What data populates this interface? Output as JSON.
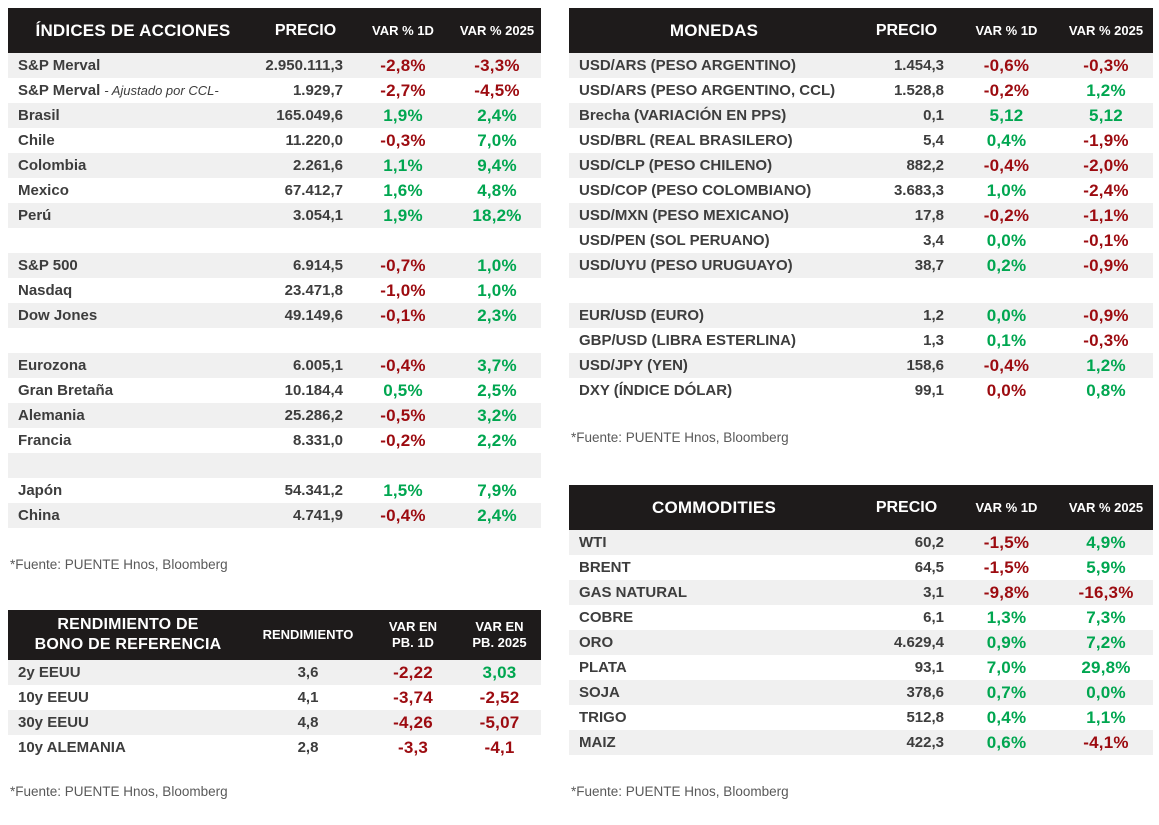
{
  "colors": {
    "header-bg": "#1e1b1b",
    "header-text": "#ffffff",
    "stripe": "#f0f0f0",
    "up-green": "#00a650",
    "down-red": "#9c0b10",
    "label-text": "#3d3d3d",
    "source-text": "#595959"
  },
  "source_note": "*Fuente: PUENTE Hnos, Bloomberg",
  "tables": {
    "indices": {
      "title_lines": [
        "ÍNDICES DE ACCIONES"
      ],
      "columns": [
        {
          "lines": [
            "PRECIO"
          ],
          "size": "lg"
        },
        {
          "lines": [
            "VAR % 1D"
          ],
          "size": "sm"
        },
        {
          "lines": [
            "VAR % 2025"
          ],
          "size": "sm"
        }
      ],
      "rows": [
        {
          "label": "S&P Merval",
          "price": "2.950.111,3",
          "var1": {
            "t": "-2,8%",
            "c": "r"
          },
          "var2": {
            "t": "-3,3%",
            "c": "r"
          }
        },
        {
          "label": "S&P Merval",
          "note": "- Ajustado por CCL-",
          "price": "1.929,7",
          "var1": {
            "t": "-2,7%",
            "c": "r"
          },
          "var2": {
            "t": "-4,5%",
            "c": "r"
          }
        },
        {
          "label": "Brasil",
          "price": "165.049,6",
          "var1": {
            "t": "1,9%",
            "c": "g"
          },
          "var2": {
            "t": "2,4%",
            "c": "g"
          }
        },
        {
          "label": "Chile",
          "price": "11.220,0",
          "var1": {
            "t": "-0,3%",
            "c": "r"
          },
          "var2": {
            "t": "7,0%",
            "c": "g"
          }
        },
        {
          "label": "Colombia",
          "price": "2.261,6",
          "var1": {
            "t": "1,1%",
            "c": "g"
          },
          "var2": {
            "t": "9,4%",
            "c": "g"
          }
        },
        {
          "label": "Mexico",
          "price": "67.412,7",
          "var1": {
            "t": "1,6%",
            "c": "g"
          },
          "var2": {
            "t": "4,8%",
            "c": "g"
          }
        },
        {
          "label": "Perú",
          "price": "3.054,1",
          "var1": {
            "t": "1,9%",
            "c": "g"
          },
          "var2": {
            "t": "18,2%",
            "c": "g"
          }
        },
        {
          "blank": true
        },
        {
          "label": "S&P 500",
          "price": "6.914,5",
          "var1": {
            "t": "-0,7%",
            "c": "r"
          },
          "var2": {
            "t": "1,0%",
            "c": "g"
          }
        },
        {
          "label": "Nasdaq",
          "price": "23.471,8",
          "var1": {
            "t": "-1,0%",
            "c": "r"
          },
          "var2": {
            "t": "1,0%",
            "c": "g"
          }
        },
        {
          "label": "Dow Jones",
          "price": "49.149,6",
          "var1": {
            "t": "-0,1%",
            "c": "r"
          },
          "var2": {
            "t": "2,3%",
            "c": "g"
          }
        },
        {
          "blank": true
        },
        {
          "label": "Eurozona",
          "price": "6.005,1",
          "var1": {
            "t": "-0,4%",
            "c": "r"
          },
          "var2": {
            "t": "3,7%",
            "c": "g"
          }
        },
        {
          "label": "Gran Bretaña",
          "price": "10.184,4",
          "var1": {
            "t": "0,5%",
            "c": "g"
          },
          "var2": {
            "t": "2,5%",
            "c": "g"
          }
        },
        {
          "label": "Alemania",
          "price": "25.286,2",
          "var1": {
            "t": "-0,5%",
            "c": "r"
          },
          "var2": {
            "t": "3,2%",
            "c": "g"
          }
        },
        {
          "label": "Francia",
          "price": "8.331,0",
          "var1": {
            "t": "-0,2%",
            "c": "r"
          },
          "var2": {
            "t": "2,2%",
            "c": "g"
          }
        },
        {
          "blank": true
        },
        {
          "label": "Japón",
          "price": "54.341,2",
          "var1": {
            "t": "1,5%",
            "c": "g"
          },
          "var2": {
            "t": "7,9%",
            "c": "g"
          }
        },
        {
          "label": "China",
          "price": "4.741,9",
          "var1": {
            "t": "-0,4%",
            "c": "r"
          },
          "var2": {
            "t": "2,4%",
            "c": "g"
          }
        }
      ]
    },
    "bonds": {
      "title_lines": [
        "RENDIMIENTO DE",
        "BONO DE REFERENCIA"
      ],
      "columns": [
        {
          "lines": [
            "RENDIMIENTO"
          ],
          "size": "sm"
        },
        {
          "lines": [
            "VAR EN",
            "PB. 1D"
          ],
          "size": "sm"
        },
        {
          "lines": [
            "VAR EN",
            "PB. 2025"
          ],
          "size": "sm"
        }
      ],
      "rows": [
        {
          "label": "2y EEUU",
          "price": "3,6",
          "var1": {
            "t": "-2,22",
            "c": "r"
          },
          "var2": {
            "t": "3,03",
            "c": "g"
          }
        },
        {
          "label": "10y EEUU",
          "price": "4,1",
          "var1": {
            "t": "-3,74",
            "c": "r"
          },
          "var2": {
            "t": "-2,52",
            "c": "r"
          }
        },
        {
          "label": "30y EEUU",
          "price": "4,8",
          "var1": {
            "t": "-4,26",
            "c": "r"
          },
          "var2": {
            "t": "-5,07",
            "c": "r"
          }
        },
        {
          "label": "10y ALEMANIA",
          "price": "2,8",
          "var1": {
            "t": "-3,3",
            "c": "r"
          },
          "var2": {
            "t": "-4,1",
            "c": "r"
          }
        }
      ]
    },
    "monedas": {
      "title_lines": [
        "MONEDAS"
      ],
      "columns": [
        {
          "lines": [
            "PRECIO"
          ],
          "size": "lg"
        },
        {
          "lines": [
            "VAR % 1D"
          ],
          "size": "sm"
        },
        {
          "lines": [
            "VAR % 2025"
          ],
          "size": "sm"
        }
      ],
      "rows": [
        {
          "label": "USD/ARS (PESO ARGENTINO)",
          "price": "1.454,3",
          "var1": {
            "t": "-0,6%",
            "c": "r"
          },
          "var2": {
            "t": "-0,3%",
            "c": "r"
          }
        },
        {
          "label": "USD/ARS (PESO ARGENTINO, CCL)",
          "price": "1.528,8",
          "var1": {
            "t": "-0,2%",
            "c": "r"
          },
          "var2": {
            "t": "1,2%",
            "c": "g"
          }
        },
        {
          "label": "Brecha (VARIACIÓN EN PPS)",
          "price": "0,1",
          "var1": {
            "t": "5,12",
            "c": "g"
          },
          "var2": {
            "t": "5,12",
            "c": "g"
          }
        },
        {
          "label": "USD/BRL (REAL BRASILERO)",
          "price": "5,4",
          "var1": {
            "t": "0,4%",
            "c": "g"
          },
          "var2": {
            "t": "-1,9%",
            "c": "r"
          }
        },
        {
          "label": "USD/CLP (PESO CHILENO)",
          "price": "882,2",
          "var1": {
            "t": "-0,4%",
            "c": "r"
          },
          "var2": {
            "t": "-2,0%",
            "c": "r"
          }
        },
        {
          "label": "USD/COP (PESO COLOMBIANO)",
          "price": "3.683,3",
          "var1": {
            "t": "1,0%",
            "c": "g"
          },
          "var2": {
            "t": "-2,4%",
            "c": "r"
          }
        },
        {
          "label": "USD/MXN (PESO MEXICANO)",
          "price": "17,8",
          "var1": {
            "t": "-0,2%",
            "c": "r"
          },
          "var2": {
            "t": "-1,1%",
            "c": "r"
          }
        },
        {
          "label": "USD/PEN (SOL PERUANO)",
          "price": "3,4",
          "var1": {
            "t": "0,0%",
            "c": "g"
          },
          "var2": {
            "t": "-0,1%",
            "c": "r"
          }
        },
        {
          "label": "USD/UYU (PESO URUGUAYO)",
          "price": "38,7",
          "var1": {
            "t": "0,2%",
            "c": "g"
          },
          "var2": {
            "t": "-0,9%",
            "c": "r"
          }
        },
        {
          "blank": true
        },
        {
          "label": "EUR/USD (EURO)",
          "price": "1,2",
          "var1": {
            "t": "0,0%",
            "c": "g"
          },
          "var2": {
            "t": "-0,9%",
            "c": "r"
          }
        },
        {
          "label": "GBP/USD (LIBRA ESTERLINA)",
          "price": "1,3",
          "var1": {
            "t": "0,1%",
            "c": "g"
          },
          "var2": {
            "t": "-0,3%",
            "c": "r"
          }
        },
        {
          "label": "USD/JPY (YEN)",
          "price": "158,6",
          "var1": {
            "t": "-0,4%",
            "c": "r"
          },
          "var2": {
            "t": "1,2%",
            "c": "g"
          }
        },
        {
          "label": "DXY (ÍNDICE DÓLAR)",
          "price": "99,1",
          "var1": {
            "t": "0,0%",
            "c": "r"
          },
          "var2": {
            "t": "0,8%",
            "c": "g"
          }
        }
      ]
    },
    "commodities": {
      "title_lines": [
        "COMMODITIES"
      ],
      "columns": [
        {
          "lines": [
            "PRECIO"
          ],
          "size": "lg"
        },
        {
          "lines": [
            "VAR % 1D"
          ],
          "size": "sm"
        },
        {
          "lines": [
            "VAR % 2025"
          ],
          "size": "sm"
        }
      ],
      "rows": [
        {
          "label": "WTI",
          "price": "60,2",
          "var1": {
            "t": "-1,5%",
            "c": "r"
          },
          "var2": {
            "t": "4,9%",
            "c": "g"
          }
        },
        {
          "label": "BRENT",
          "price": "64,5",
          "var1": {
            "t": "-1,5%",
            "c": "r"
          },
          "var2": {
            "t": "5,9%",
            "c": "g"
          }
        },
        {
          "label": "GAS NATURAL",
          "price": "3,1",
          "var1": {
            "t": "-9,8%",
            "c": "r"
          },
          "var2": {
            "t": "-16,3%",
            "c": "r"
          }
        },
        {
          "label": "COBRE",
          "price": "6,1",
          "var1": {
            "t": "1,3%",
            "c": "g"
          },
          "var2": {
            "t": "7,3%",
            "c": "g"
          }
        },
        {
          "label": "ORO",
          "price": "4.629,4",
          "var1": {
            "t": "0,9%",
            "c": "g"
          },
          "var2": {
            "t": "7,2%",
            "c": "g"
          }
        },
        {
          "label": "PLATA",
          "price": "93,1",
          "var1": {
            "t": "7,0%",
            "c": "g"
          },
          "var2": {
            "t": "29,8%",
            "c": "g"
          }
        },
        {
          "label": "SOJA",
          "price": "378,6",
          "var1": {
            "t": "0,7%",
            "c": "g"
          },
          "var2": {
            "t": "0,0%",
            "c": "g"
          }
        },
        {
          "label": "TRIGO",
          "price": "512,8",
          "var1": {
            "t": "0,4%",
            "c": "g"
          },
          "var2": {
            "t": "1,1%",
            "c": "g"
          }
        },
        {
          "label": "MAIZ",
          "price": "422,3",
          "var1": {
            "t": "0,6%",
            "c": "g"
          },
          "var2": {
            "t": "-4,1%",
            "c": "r"
          }
        }
      ]
    }
  }
}
